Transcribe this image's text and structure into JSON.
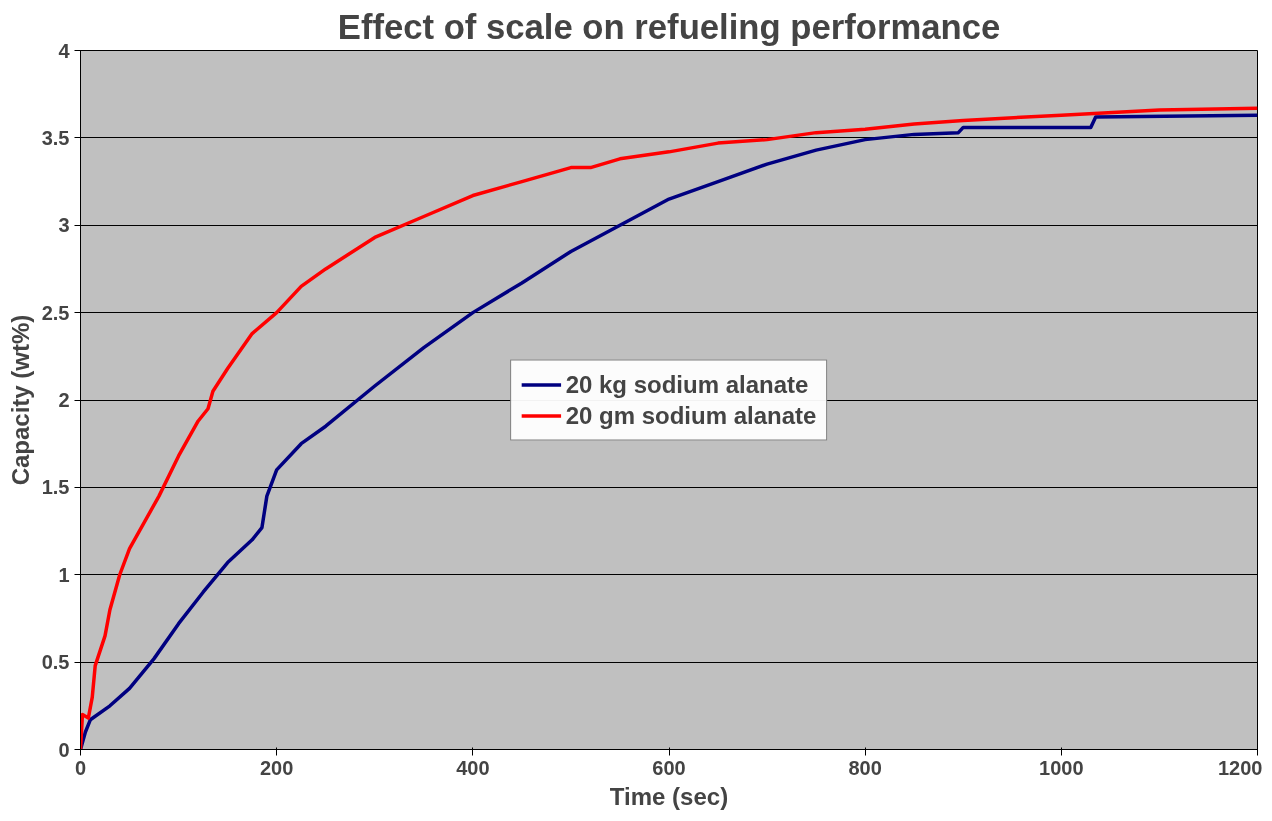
{
  "chart_data": {
    "type": "line",
    "title": "Effect of scale on refueling performance",
    "xlabel": "Time (sec)",
    "ylabel": "Capacity (wt%)",
    "xlim": [
      0,
      1200
    ],
    "xticks": [
      0,
      200,
      400,
      600,
      800,
      1000,
      1200
    ],
    "ylim": [
      0,
      4
    ],
    "yticks": [
      0,
      0.5,
      1,
      1.5,
      2,
      2.5,
      3,
      3.5,
      4
    ],
    "grid": "y",
    "legend": "center",
    "line_style": "solid",
    "marker": "none",
    "series": [
      {
        "name": "20 kg sodium alanate",
        "color": "#000080",
        "x": [
          0,
          5,
          10,
          30,
          50,
          75,
          100,
          125,
          150,
          175,
          185,
          190,
          200,
          225,
          250,
          300,
          350,
          400,
          450,
          500,
          550,
          600,
          650,
          700,
          750,
          800,
          850,
          895,
          900,
          1030,
          1035,
          1200
        ],
        "values": [
          0,
          0.1,
          0.17,
          0.25,
          0.35,
          0.52,
          0.72,
          0.9,
          1.07,
          1.2,
          1.27,
          1.45,
          1.6,
          1.75,
          1.85,
          2.08,
          2.3,
          2.5,
          2.67,
          2.85,
          3.0,
          3.15,
          3.25,
          3.35,
          3.43,
          3.49,
          3.52,
          3.53,
          3.56,
          3.56,
          3.62,
          3.63
        ]
      },
      {
        "name": "20 gm sodium alanate",
        "color": "#ff0000",
        "x": [
          0,
          2,
          8,
          12,
          15,
          25,
          30,
          40,
          50,
          60,
          80,
          100,
          120,
          130,
          135,
          150,
          175,
          200,
          225,
          250,
          300,
          350,
          400,
          450,
          500,
          520,
          550,
          600,
          650,
          700,
          750,
          800,
          850,
          900,
          1000,
          1100,
          1200
        ],
        "values": [
          0,
          0.2,
          0.18,
          0.3,
          0.48,
          0.65,
          0.8,
          1.0,
          1.15,
          1.25,
          1.45,
          1.68,
          1.88,
          1.95,
          2.05,
          2.18,
          2.38,
          2.5,
          2.65,
          2.75,
          2.93,
          3.05,
          3.17,
          3.25,
          3.33,
          3.33,
          3.38,
          3.42,
          3.47,
          3.49,
          3.53,
          3.55,
          3.58,
          3.6,
          3.63,
          3.66,
          3.67
        ]
      }
    ]
  }
}
